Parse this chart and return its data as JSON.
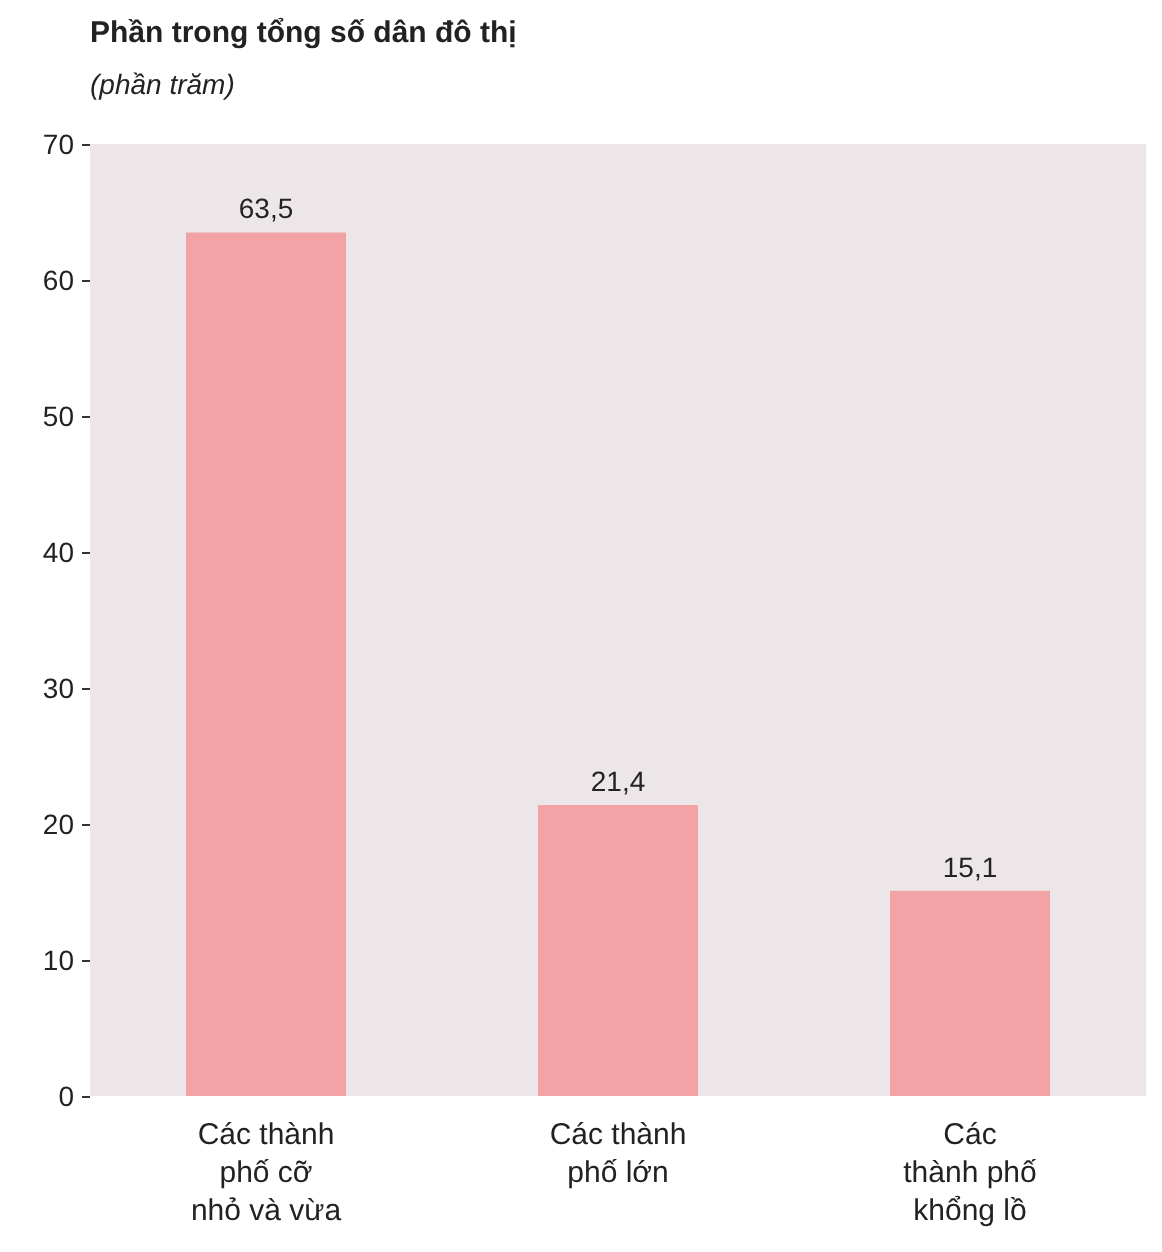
{
  "chart_data": {
    "type": "bar",
    "title": "Phần trong tổng số dân đô thị",
    "subtitle": "(phần trăm)",
    "categories": [
      "Các thành\nphố cỡ\nnhỏ và vừa",
      "Các thành\nphố lớn",
      "Các\nthành phố\nkhổng lồ"
    ],
    "values": [
      63.5,
      21.4,
      15.1
    ],
    "value_labels": [
      "63,5",
      "21,4",
      "15,1"
    ],
    "color": "#f2a3a5",
    "ylim": [
      0,
      70
    ],
    "yticks": [
      0,
      10,
      20,
      30,
      40,
      50,
      60,
      70
    ],
    "grid": false
  }
}
